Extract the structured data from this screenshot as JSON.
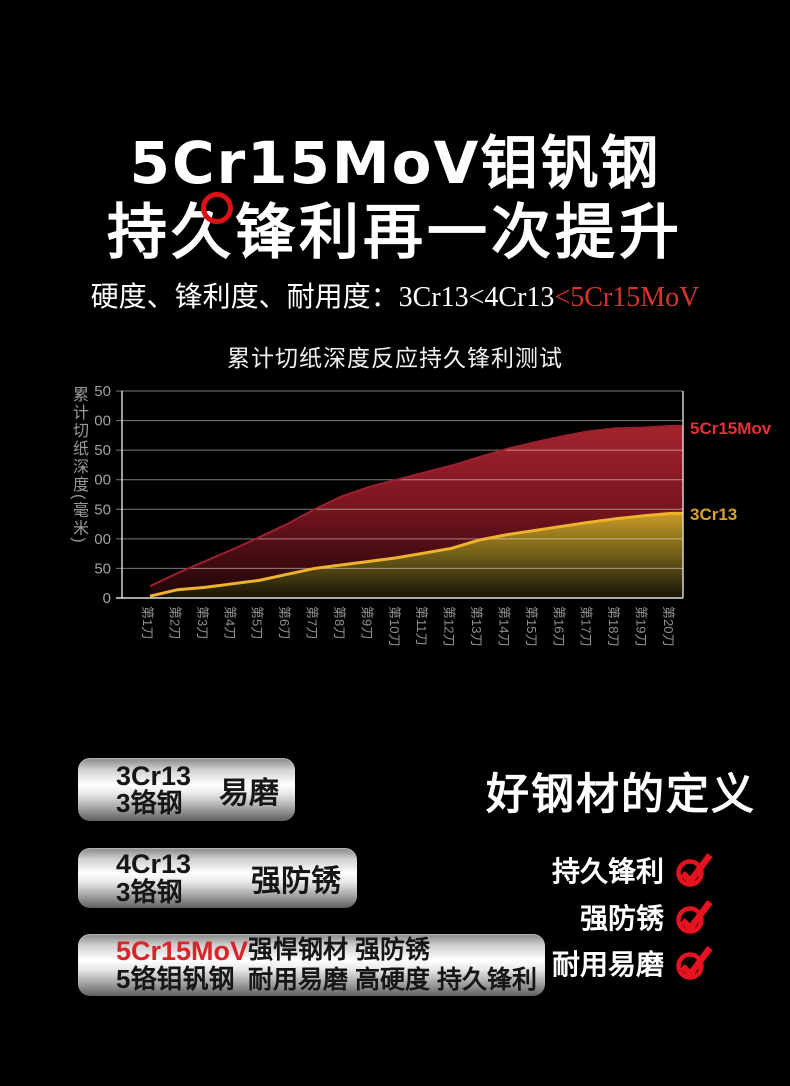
{
  "header": {
    "title_line1": "5Cr15MoV钼钒钢",
    "title_line2": "持久锋利再一次提升",
    "subtitle_normal": "硬度、锋利度、耐用度：3Cr13<4Cr13",
    "subtitle_highlight": "<5Cr15MoV",
    "highlight_color": "#d7342e"
  },
  "chart_data": {
    "type": "area",
    "title": "累计切纸深度反应持久锋利测试",
    "xlabel": "",
    "ylabel": "累计切纸深度(毫米)",
    "ylim": [
      0,
      350
    ],
    "yticks": [
      0,
      50,
      100,
      150,
      200,
      250,
      300,
      350
    ],
    "grid": true,
    "legend_position": "right",
    "categories": [
      "第1刀",
      "第2刀",
      "第3刀",
      "第4刀",
      "第5刀",
      "第6刀",
      "第7刀",
      "第8刀",
      "第9刀",
      "第10刀",
      "第11刀",
      "第12刀",
      "第13刀",
      "第14刀",
      "第15刀",
      "第16刀",
      "第17刀",
      "第18刀",
      "第19刀",
      "第20刀"
    ],
    "series": [
      {
        "name": "5Cr15Mov",
        "label_color": "#e53136",
        "fill_top": "#a3242e",
        "fill_bottom": "#1c0507",
        "values": [
          20,
          42,
          62,
          82,
          103,
          125,
          150,
          172,
          188,
          200,
          212,
          224,
          238,
          252,
          263,
          273,
          282,
          287,
          288,
          291
        ]
      },
      {
        "name": "3Cr13",
        "label_color": "#d7a32c",
        "fill_top": "#c79a26",
        "fill_bottom": "#171307",
        "values": [
          3,
          14,
          18,
          24,
          30,
          40,
          50,
          56,
          62,
          68,
          76,
          84,
          98,
          107,
          114,
          121,
          128,
          134,
          139,
          143
        ]
      }
    ]
  },
  "definition": {
    "heading": "好钢材的定义",
    "check_color": "#e5131f",
    "items": [
      {
        "label": "持久锋利"
      },
      {
        "label": "强防锈"
      },
      {
        "label": "耐用易磨"
      }
    ]
  },
  "badges": [
    {
      "code": "3Cr13",
      "name": "3铬钢",
      "traits": [
        "易磨"
      ]
    },
    {
      "code": "4Cr13",
      "name": "3铬钢",
      "traits": [
        "强防锈"
      ]
    },
    {
      "code": "5Cr15MoV",
      "name": "5铬钼钒钢",
      "traits": [
        "强悍钢材 强防锈",
        "耐用易磨 高硬度 持久锋利"
      ]
    }
  ]
}
